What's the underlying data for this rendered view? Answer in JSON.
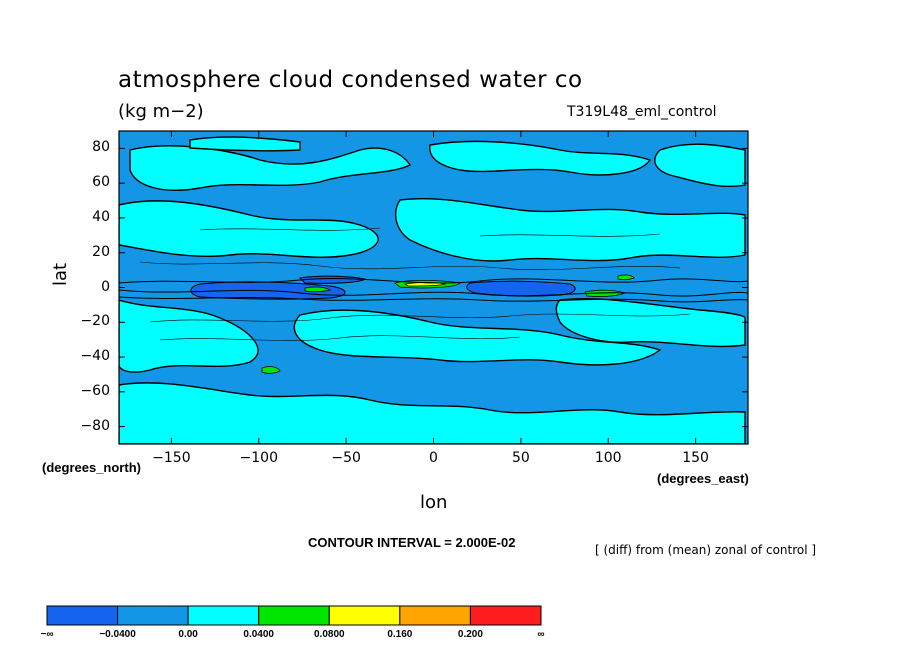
{
  "chart_data": {
    "type": "heatmap",
    "title": "atmosphere cloud condensed water co",
    "units": "(kg m−2)",
    "experiment": "T319L48_eml_control",
    "xlabel": "lon",
    "ylabel": "lat",
    "x_unit_label": "(degrees_east)",
    "y_unit_label": "(degrees_north)",
    "xlim": [
      -180,
      180
    ],
    "ylim": [
      -90,
      90
    ],
    "x_ticks": [
      -150,
      -100,
      -50,
      0,
      50,
      100,
      150
    ],
    "x_tick_labels": [
      "−150",
      "−100",
      "−50",
      "0",
      "50",
      "100",
      "150"
    ],
    "y_ticks": [
      80,
      60,
      40,
      20,
      0,
      -20,
      -40,
      -60,
      -80
    ],
    "y_tick_labels": [
      "80",
      "60",
      "40",
      "20",
      "0",
      "−20",
      "−40",
      "−60",
      "−80"
    ],
    "contour_interval": "CONTOUR INTERVAL = 2.000E-02",
    "note": "[ (diff) from (mean) zonal of control ]",
    "colorbar": {
      "levels": [
        "−∞",
        "−0.0400",
        "0.00",
        "0.0400",
        "0.0800",
        "0.160",
        "0.200",
        "∞"
      ],
      "colors": [
        "#1464f0",
        "#1496e6",
        "#00ffff",
        "#00e600",
        "#ffff00",
        "#ffa500",
        "#ff1e1e"
      ]
    }
  }
}
